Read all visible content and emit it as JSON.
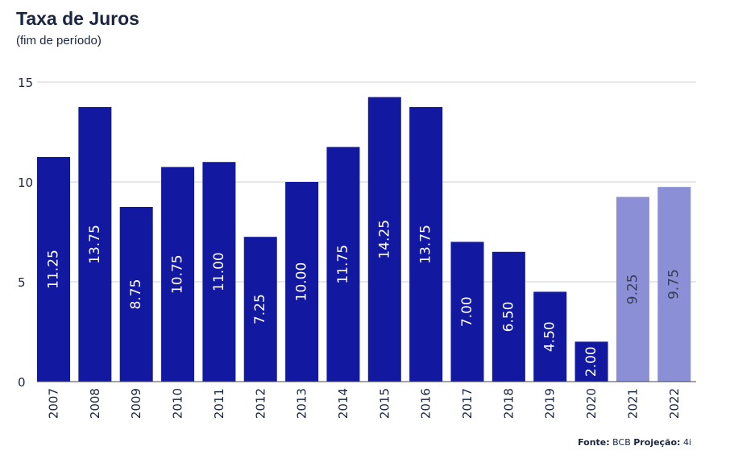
{
  "header": {
    "title": "Taxa de Juros",
    "subtitle": "(fim de período)"
  },
  "source": {
    "fonte_label": "Fonte:",
    "fonte_value": "BCB",
    "projecao_label": "Projeção:",
    "projecao_value": "4i"
  },
  "colors": {
    "actual": "#1219a0",
    "projection": "#8a8fd6",
    "label_on_actual": "#ffffff",
    "label_on_projection": "#3a3f55",
    "grid": "#cfcfcf",
    "axis_text": "#1a2540"
  },
  "chart_data": {
    "type": "bar",
    "title": "Taxa de Juros",
    "subtitle": "(fim de período)",
    "categories": [
      "2007",
      "2008",
      "2009",
      "2010",
      "2011",
      "2012",
      "2013",
      "2014",
      "2015",
      "2016",
      "2017",
      "2018",
      "2019",
      "2020",
      "2021",
      "2022"
    ],
    "values": [
      11.25,
      13.75,
      8.75,
      10.75,
      11.0,
      7.25,
      10.0,
      11.75,
      14.25,
      13.75,
      7.0,
      6.5,
      4.5,
      2.0,
      9.25,
      9.75
    ],
    "value_labels": [
      "11.25",
      "13.75",
      "8.75",
      "10.75",
      "11.00",
      "7.25",
      "10.00",
      "11.75",
      "14.25",
      "13.75",
      "7.00",
      "6.50",
      "4.50",
      "2.00",
      "9.25",
      "9.75"
    ],
    "projection": [
      false,
      false,
      false,
      false,
      false,
      false,
      false,
      false,
      false,
      false,
      false,
      false,
      false,
      false,
      true,
      true
    ],
    "ylim": [
      0,
      15
    ],
    "yticks": [
      0,
      5,
      10,
      15
    ],
    "ytick_labels": [
      "0",
      "5",
      "10",
      "15"
    ],
    "grid": true,
    "xlabel": "",
    "ylabel": ""
  }
}
